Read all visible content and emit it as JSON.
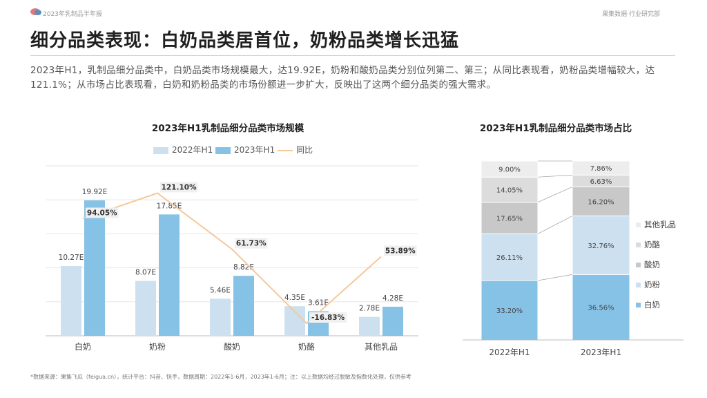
{
  "header": {
    "report_name": "2023年乳制品半年报",
    "brand_dept": "果集数据·行业研究部"
  },
  "page": {
    "headline": "细分品类表现：白奶品类居首位，奶粉品类增长迅猛",
    "summary": "2023年H1，乳制品细分品类中，白奶品类市场规模最大，达19.92E，奶粉和酸奶品类分别位列第二、第三；从同比表现看，奶粉品类增幅较大，达121.1%；从市场占比表现看，白奶和奶粉品类的市场份额进一步扩大，反映出了这两个细分品类的强大需求。",
    "footnote": "*数据来源：果集飞瓜（feigua.cn），统计平台：抖音、快手，数据周期：2022年1-6月，2023年1-6月；注：以上数据均经过脱敏及指数化处理，仅供参考"
  },
  "chart_data": [
    {
      "type": "bar",
      "title": "2023年H1乳制品细分品类市场规模",
      "categories": [
        "白奶",
        "奶粉",
        "酸奶",
        "奶酪",
        "其他乳品"
      ],
      "series": [
        {
          "name": "2022年H1",
          "values": [
            10.27,
            8.07,
            5.46,
            4.35,
            2.78
          ],
          "labels": [
            "10.27E",
            "8.07E",
            "5.46E",
            "4.35E",
            "2.78E"
          ],
          "color": "#cde0ef"
        },
        {
          "name": "2023年H1",
          "values": [
            19.92,
            17.85,
            8.82,
            3.61,
            4.28
          ],
          "labels": [
            "19.92E",
            "17.85E",
            "8.82E",
            "3.61E",
            "4.28E"
          ],
          "color": "#86c1e6"
        },
        {
          "name": "同比",
          "kind": "line",
          "values": [
            94.05,
            121.1,
            61.73,
            -16.83,
            53.89
          ],
          "labels": [
            "94.05%",
            "121.10%",
            "61.73%",
            "-16.83%",
            "53.89%"
          ],
          "color": "#f5c89a"
        }
      ],
      "ylim": [
        0,
        25
      ],
      "y2lim": [
        -30,
        150
      ],
      "grid": true,
      "legend": "top"
    },
    {
      "type": "bar",
      "stacked": "100%",
      "title": "2023年H1乳制品细分品类市场占比",
      "categories": [
        "2022年H1",
        "2023年H1"
      ],
      "series": [
        {
          "name": "白奶",
          "values": [
            33.2,
            36.56
          ],
          "labels": [
            "33.20%",
            "36.56%"
          ],
          "color": "#86c1e6"
        },
        {
          "name": "奶粉",
          "values": [
            26.11,
            32.76
          ],
          "labels": [
            "26.11%",
            "32.76%"
          ],
          "color": "#cde0ef"
        },
        {
          "name": "酸奶",
          "values": [
            17.65,
            16.2
          ],
          "labels": [
            "17.65%",
            "16.20%"
          ],
          "color": "#c8c8c8"
        },
        {
          "name": "奶酪",
          "values": [
            14.05,
            6.63
          ],
          "labels": [
            "14.05%",
            "6.63%"
          ],
          "color": "#dcdcdc"
        },
        {
          "name": "其他乳品",
          "values": [
            9.0,
            7.86
          ],
          "labels": [
            "9.00%",
            "7.86%"
          ],
          "color": "#ededed"
        }
      ],
      "legend": "right"
    }
  ]
}
